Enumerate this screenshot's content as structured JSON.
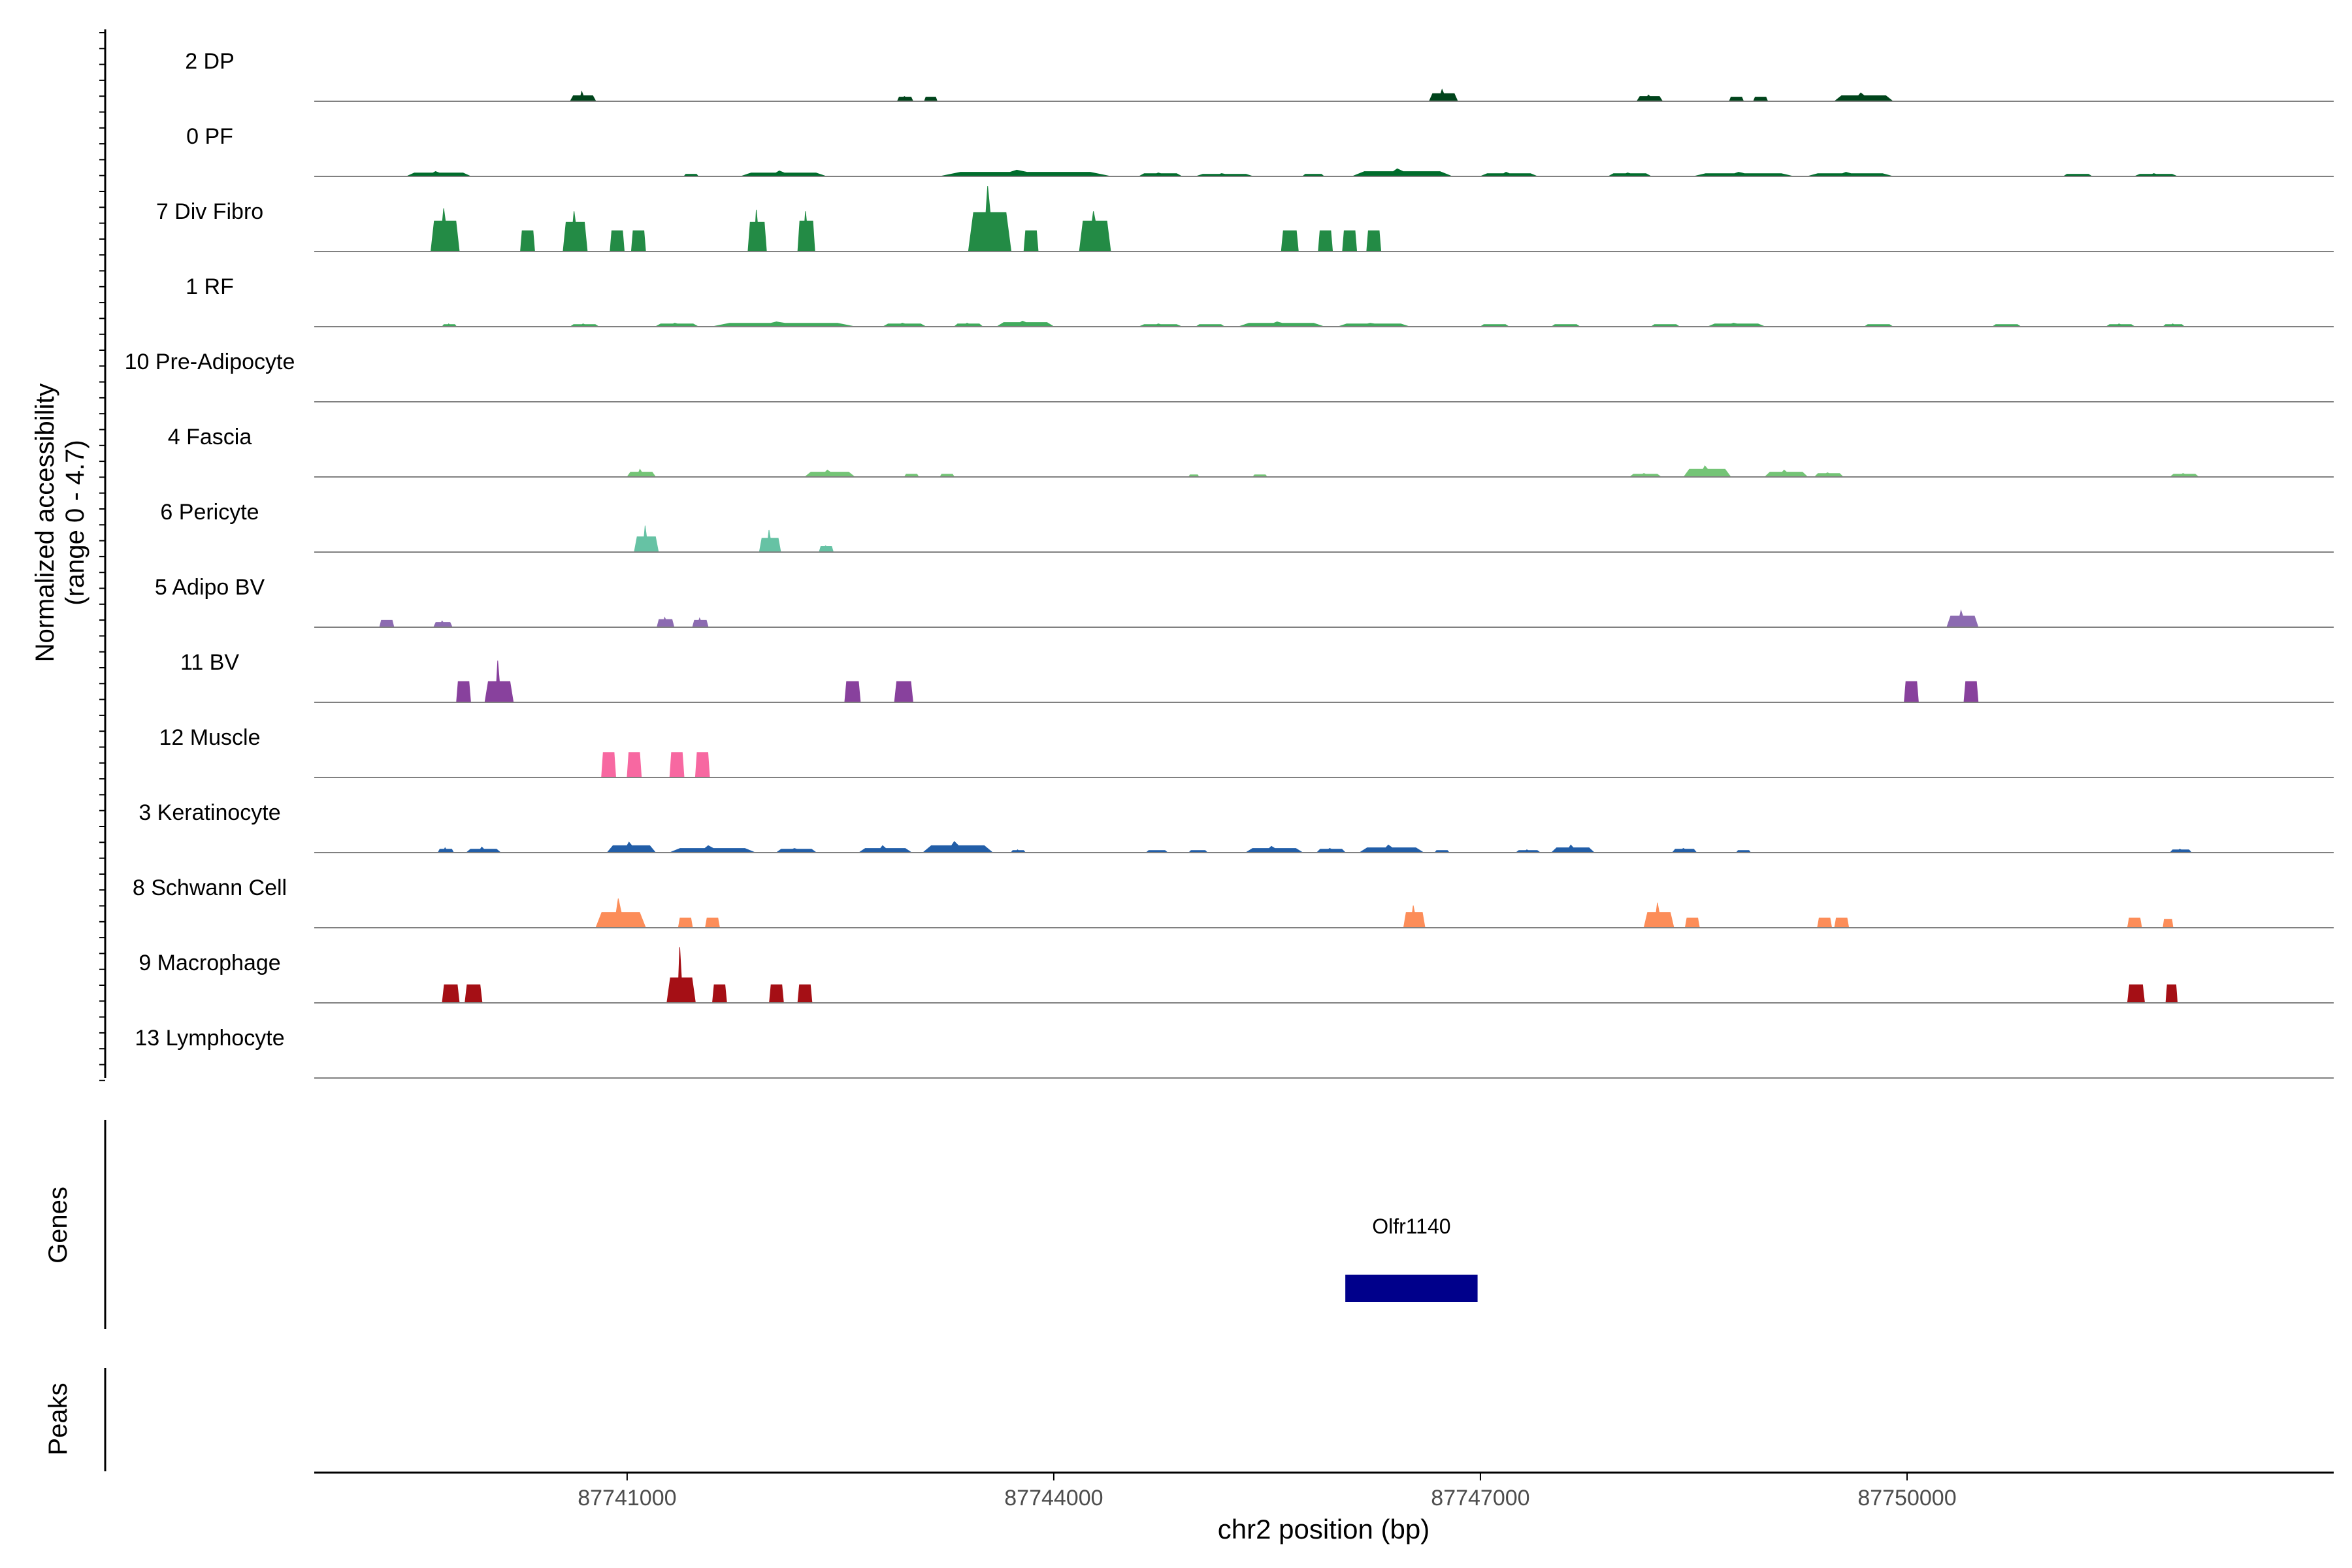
{
  "chart_data": {
    "type": "area",
    "subtype": "genome-coverage-track",
    "title": "",
    "ylabel_line1": "Normalized accessibility",
    "ylabel_line2": "(range 0 - 4.7)",
    "y_range": [
      0,
      4.7
    ],
    "xlabel": "chr2 position (bp)",
    "xlim": [
      87738800,
      87753000
    ],
    "x_ticks": [
      87741000,
      87744000,
      87747000,
      87750000
    ],
    "x_tick_labels": [
      "87741000",
      "87744000",
      "87747000",
      "87750000"
    ],
    "genes_label": "Genes",
    "peaks_label": "Peaks",
    "genes": [
      {
        "name": "Olfr1140",
        "start": 87746050,
        "end": 87746980,
        "color": "#00008b"
      }
    ],
    "series": [
      {
        "name": "2 DP",
        "color": "#00441b",
        "peaks": [
          [
            87740600,
            87740780,
            0.4,
            0.7
          ],
          [
            87742900,
            87743010,
            0.3,
            0.35
          ],
          [
            87743090,
            87743180,
            0.3,
            0.3
          ],
          [
            87746640,
            87746840,
            0.55,
            0.85
          ],
          [
            87748100,
            87748280,
            0.35,
            0.45
          ],
          [
            87748750,
            87748850,
            0.3,
            0.3
          ],
          [
            87748920,
            87749020,
            0.3,
            0.3
          ],
          [
            87749490,
            87749900,
            0.4,
            0.6
          ]
        ]
      },
      {
        "name": "0 PF",
        "color": "#006d2c",
        "peaks": [
          [
            87739450,
            87739900,
            0.25,
            0.35
          ],
          [
            87741400,
            87741500,
            0.15,
            0.15
          ],
          [
            87741800,
            87742400,
            0.25,
            0.4
          ],
          [
            87743200,
            87744400,
            0.3,
            0.45
          ],
          [
            87744600,
            87744900,
            0.2,
            0.25
          ],
          [
            87745000,
            87745400,
            0.15,
            0.2
          ],
          [
            87745750,
            87745900,
            0.15,
            0.15
          ],
          [
            87746100,
            87746800,
            0.35,
            0.55
          ],
          [
            87747000,
            87747400,
            0.2,
            0.3
          ],
          [
            87747900,
            87748200,
            0.2,
            0.25
          ],
          [
            87748500,
            87749200,
            0.2,
            0.3
          ],
          [
            87749300,
            87749900,
            0.2,
            0.3
          ],
          [
            87751100,
            87751300,
            0.15,
            0.15
          ],
          [
            87751600,
            87751900,
            0.15,
            0.2
          ]
        ]
      },
      {
        "name": "7 Div Fibro",
        "color": "#238b45",
        "peaks": [
          [
            87739620,
            87739820,
            2.2,
            3.1
          ],
          [
            87740250,
            87740350,
            1.5,
            1.5
          ],
          [
            87740550,
            87740720,
            2.1,
            2.9
          ],
          [
            87740880,
            87740980,
            1.5,
            1.5
          ],
          [
            87741030,
            87741130,
            1.5,
            1.5
          ],
          [
            87741850,
            87741980,
            2.1,
            3.0
          ],
          [
            87742200,
            87742320,
            2.2,
            2.9
          ],
          [
            87743400,
            87743700,
            2.8,
            4.7
          ],
          [
            87743790,
            87743890,
            1.5,
            1.5
          ],
          [
            87744180,
            87744400,
            2.2,
            2.9
          ],
          [
            87745600,
            87745720,
            1.5,
            1.5
          ],
          [
            87745860,
            87745960,
            1.5,
            1.5
          ],
          [
            87746030,
            87746130,
            1.5,
            1.5
          ],
          [
            87746200,
            87746300,
            1.5,
            1.5
          ]
        ]
      },
      {
        "name": "1 RF",
        "color": "#41ab5d",
        "peaks": [
          [
            87739700,
            87739800,
            0.15,
            0.2
          ],
          [
            87740600,
            87740800,
            0.15,
            0.2
          ],
          [
            87741200,
            87741500,
            0.2,
            0.25
          ],
          [
            87741600,
            87742600,
            0.25,
            0.35
          ],
          [
            87742800,
            87743100,
            0.2,
            0.25
          ],
          [
            87743300,
            87743500,
            0.2,
            0.25
          ],
          [
            87743600,
            87744000,
            0.3,
            0.4
          ],
          [
            87744600,
            87744900,
            0.15,
            0.2
          ],
          [
            87745300,
            87745900,
            0.25,
            0.35
          ],
          [
            87745000,
            87745200,
            0.15,
            0.15
          ],
          [
            87746000,
            87746500,
            0.2,
            0.25
          ],
          [
            87747000,
            87747200,
            0.15,
            0.15
          ],
          [
            87747500,
            87747700,
            0.15,
            0.15
          ],
          [
            87748200,
            87748400,
            0.15,
            0.15
          ],
          [
            87748600,
            87749000,
            0.2,
            0.25
          ],
          [
            87749700,
            87749900,
            0.15,
            0.15
          ],
          [
            87750600,
            87750800,
            0.15,
            0.15
          ],
          [
            87751400,
            87751600,
            0.15,
            0.2
          ],
          [
            87751800,
            87751950,
            0.15,
            0.2
          ]
        ]
      },
      {
        "name": "10 Pre-Adipocyte",
        "color": "#74c476",
        "peaks": []
      },
      {
        "name": "4 Fascia",
        "color": "#74c476",
        "peaks": [
          [
            87741000,
            87741200,
            0.35,
            0.55
          ],
          [
            87742250,
            87742600,
            0.35,
            0.5
          ],
          [
            87742950,
            87743050,
            0.2,
            0.2
          ],
          [
            87743200,
            87743300,
            0.2,
            0.2
          ],
          [
            87744950,
            87745020,
            0.15,
            0.15
          ],
          [
            87745400,
            87745500,
            0.15,
            0.15
          ],
          [
            87748050,
            87748270,
            0.2,
            0.25
          ],
          [
            87748430,
            87748760,
            0.55,
            0.8
          ],
          [
            87749000,
            87749300,
            0.35,
            0.5
          ],
          [
            87749350,
            87749550,
            0.25,
            0.3
          ],
          [
            87751850,
            87752050,
            0.2,
            0.25
          ]
        ]
      },
      {
        "name": "6 Pericyte",
        "color": "#66c2a4",
        "peaks": [
          [
            87741050,
            87741220,
            1.1,
            1.9
          ],
          [
            87741930,
            87742080,
            1.0,
            1.6
          ],
          [
            87742350,
            87742450,
            0.4,
            0.45
          ]
        ]
      },
      {
        "name": "5 Adipo BV",
        "color": "#8c6bb1",
        "peaks": [
          [
            87739260,
            87739360,
            0.5,
            0.5
          ],
          [
            87739640,
            87739770,
            0.35,
            0.45
          ],
          [
            87741210,
            87741330,
            0.55,
            0.7
          ],
          [
            87741460,
            87741570,
            0.5,
            0.65
          ],
          [
            87750280,
            87750500,
            0.8,
            1.2
          ]
        ]
      },
      {
        "name": "11 BV",
        "color": "#88419d",
        "peaks": [
          [
            87739800,
            87739900,
            1.5,
            1.5
          ],
          [
            87740000,
            87740200,
            1.5,
            3.0
          ],
          [
            87742530,
            87742640,
            1.5,
            1.5
          ],
          [
            87742880,
            87743010,
            1.5,
            1.5
          ],
          [
            87749980,
            87750080,
            1.5,
            1.5
          ],
          [
            87750400,
            87750500,
            1.5,
            1.5
          ]
        ]
      },
      {
        "name": "12 Muscle",
        "color": "#f768a1",
        "peaks": [
          [
            87740820,
            87740920,
            1.8,
            1.8
          ],
          [
            87741000,
            87741100,
            1.8,
            1.8
          ],
          [
            87741300,
            87741400,
            1.8,
            1.8
          ],
          [
            87741480,
            87741580,
            1.8,
            1.8
          ]
        ]
      },
      {
        "name": "3 Keratinocyte",
        "color": "#225ea8",
        "peaks": [
          [
            87739670,
            87739780,
            0.25,
            0.35
          ],
          [
            87739870,
            87740110,
            0.25,
            0.4
          ],
          [
            87740860,
            87741200,
            0.5,
            0.75
          ],
          [
            87741300,
            87741900,
            0.3,
            0.5
          ],
          [
            87742050,
            87742330,
            0.25,
            0.3
          ],
          [
            87742630,
            87743000,
            0.3,
            0.5
          ],
          [
            87743080,
            87743570,
            0.5,
            0.8
          ],
          [
            87743700,
            87743800,
            0.15,
            0.2
          ],
          [
            87744650,
            87744800,
            0.15,
            0.15
          ],
          [
            87744950,
            87745080,
            0.15,
            0.15
          ],
          [
            87745350,
            87745750,
            0.3,
            0.45
          ],
          [
            87745850,
            87746050,
            0.25,
            0.3
          ],
          [
            87746150,
            87746600,
            0.35,
            0.55
          ],
          [
            87746680,
            87746780,
            0.15,
            0.15
          ],
          [
            87747250,
            87747420,
            0.15,
            0.2
          ],
          [
            87747500,
            87747800,
            0.35,
            0.55
          ],
          [
            87748350,
            87748520,
            0.25,
            0.3
          ],
          [
            87748800,
            87748900,
            0.15,
            0.15
          ],
          [
            87751850,
            87752000,
            0.2,
            0.25
          ]
        ]
      },
      {
        "name": "8 Schwann Cell",
        "color": "#fc8d59",
        "peaks": [
          [
            87740780,
            87741130,
            1.1,
            2.1
          ],
          [
            87741360,
            87741460,
            0.7,
            0.7
          ],
          [
            87741550,
            87741650,
            0.7,
            0.7
          ],
          [
            87746460,
            87746610,
            1.1,
            1.6
          ],
          [
            87748150,
            87748360,
            1.1,
            1.8
          ],
          [
            87748440,
            87748540,
            0.7,
            0.7
          ],
          [
            87749370,
            87749470,
            0.7,
            0.7
          ],
          [
            87749490,
            87749590,
            0.7,
            0.7
          ],
          [
            87751550,
            87751650,
            0.7,
            0.7
          ],
          [
            87751800,
            87751870,
            0.6,
            0.6
          ]
        ]
      },
      {
        "name": "9 Macrophage",
        "color": "#a50f15",
        "peaks": [
          [
            87739700,
            87739820,
            1.3,
            1.3
          ],
          [
            87739860,
            87739980,
            1.3,
            1.3
          ],
          [
            87741280,
            87741480,
            1.8,
            4.0
          ],
          [
            87741600,
            87741700,
            1.3,
            1.3
          ],
          [
            87742000,
            87742100,
            1.3,
            1.3
          ],
          [
            87742200,
            87742300,
            1.3,
            1.3
          ],
          [
            87751550,
            87751670,
            1.3,
            1.3
          ],
          [
            87751820,
            87751900,
            1.3,
            1.3
          ]
        ]
      },
      {
        "name": "13 Lymphocyte",
        "color": "#969696",
        "peaks": []
      }
    ]
  }
}
